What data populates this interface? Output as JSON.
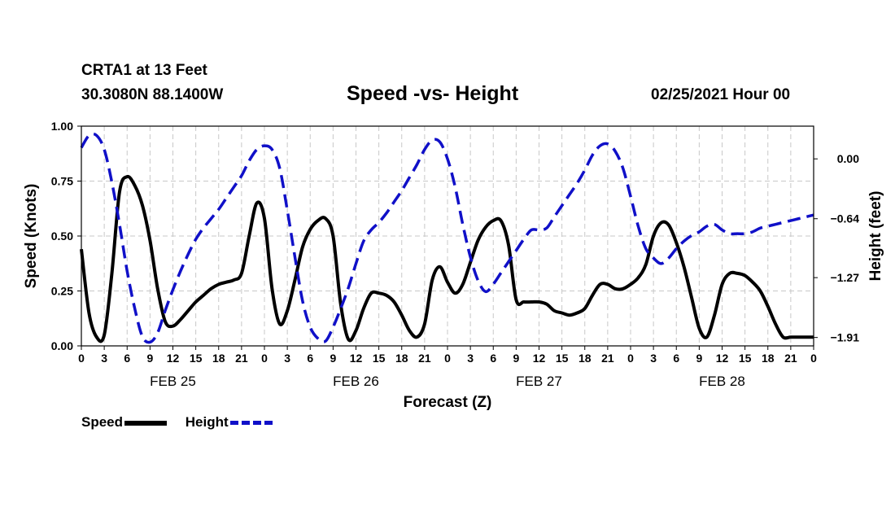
{
  "header": {
    "station": "CRTA1 at 13 Feet",
    "coordinates": "30.3080N 88.1400W",
    "title": "Speed -vs- Height",
    "datetime": "02/25/2021 Hour 00"
  },
  "chart_data": {
    "type": "line",
    "title": "Speed -vs- Height",
    "xlabel": "Forecast (Z)",
    "ylabel": "Speed (Knots)",
    "y2label": "Height (feet)",
    "xlim": [
      0,
      96
    ],
    "ylim": [
      0,
      1.0
    ],
    "y2lim": [
      -2.0,
      0.35
    ],
    "grid": true,
    "x_ticks": [
      0,
      3,
      6,
      9,
      12,
      15,
      18,
      21,
      24,
      27,
      30,
      33,
      36,
      39,
      42,
      45,
      48,
      51,
      54,
      57,
      60,
      63,
      66,
      69,
      72,
      75,
      78,
      81,
      84,
      87,
      90,
      93,
      96
    ],
    "x_tick_labels": [
      "0",
      "3",
      "6",
      "9",
      "12",
      "15",
      "18",
      "21",
      "0",
      "3",
      "6",
      "9",
      "12",
      "15",
      "18",
      "21",
      "0",
      "3",
      "6",
      "9",
      "12",
      "15",
      "18",
      "21",
      "0",
      "3",
      "6",
      "9",
      "12",
      "15",
      "18",
      "21",
      "0"
    ],
    "date_labels": [
      {
        "x": 12,
        "label": "FEB 25"
      },
      {
        "x": 36,
        "label": "FEB 26"
      },
      {
        "x": 60,
        "label": "FEB 27"
      },
      {
        "x": 84,
        "label": "FEB 28"
      }
    ],
    "y_ticks": [
      0,
      0.25,
      0.5,
      0.75,
      1.0
    ],
    "y_tick_labels": [
      "0.00",
      "0.25",
      "0.50",
      "0.75",
      "1.00"
    ],
    "y2_ticks": [
      0.0,
      -0.64,
      -1.27,
      -1.91
    ],
    "y2_tick_labels": [
      "0.00",
      "−0.64",
      "−1.27",
      "−1.91"
    ],
    "legend": {
      "placement": "bottom-left",
      "speed_label": "Speed",
      "height_label": "Height"
    },
    "series": [
      {
        "name": "Speed",
        "axis": "left",
        "color": "#000000",
        "style": "solid",
        "x": [
          0,
          1,
          2,
          3,
          4,
          5,
          6,
          7,
          8,
          9,
          10,
          11,
          12,
          13,
          14,
          15,
          16,
          17,
          18,
          19,
          20,
          21,
          22,
          23,
          24,
          25,
          26,
          27,
          28,
          29,
          30,
          31,
          32,
          33,
          34,
          35,
          36,
          37,
          38,
          39,
          40,
          41,
          42,
          43,
          44,
          45,
          46,
          47,
          48,
          49,
          50,
          51,
          52,
          53,
          54,
          55,
          56,
          57,
          58,
          59,
          60,
          61,
          62,
          63,
          64,
          65,
          66,
          67,
          68,
          69,
          70,
          71,
          72,
          73,
          74,
          75,
          76,
          77,
          78,
          79,
          80,
          81,
          82,
          83,
          84,
          85,
          86,
          87,
          88,
          89,
          90,
          91,
          92,
          93,
          94,
          95,
          96
        ],
        "values": [
          0.44,
          0.15,
          0.04,
          0.05,
          0.33,
          0.7,
          0.77,
          0.73,
          0.64,
          0.48,
          0.26,
          0.11,
          0.09,
          0.12,
          0.16,
          0.2,
          0.23,
          0.26,
          0.28,
          0.29,
          0.3,
          0.33,
          0.5,
          0.65,
          0.58,
          0.26,
          0.1,
          0.16,
          0.3,
          0.45,
          0.53,
          0.57,
          0.58,
          0.5,
          0.19,
          0.03,
          0.07,
          0.17,
          0.24,
          0.24,
          0.23,
          0.2,
          0.14,
          0.07,
          0.04,
          0.1,
          0.3,
          0.36,
          0.29,
          0.24,
          0.28,
          0.38,
          0.48,
          0.54,
          0.57,
          0.57,
          0.46,
          0.21,
          0.2,
          0.2,
          0.2,
          0.19,
          0.16,
          0.15,
          0.14,
          0.15,
          0.17,
          0.23,
          0.28,
          0.28,
          0.26,
          0.26,
          0.28,
          0.31,
          0.37,
          0.5,
          0.56,
          0.55,
          0.47,
          0.36,
          0.22,
          0.08,
          0.04,
          0.14,
          0.28,
          0.33,
          0.33,
          0.32,
          0.29,
          0.25,
          0.18,
          0.1,
          0.04,
          0.04,
          0.04,
          0.04,
          0.04
        ]
      },
      {
        "name": "Height",
        "axis": "right",
        "color": "#1010c8",
        "style": "dashed",
        "x": [
          0,
          1,
          2,
          3,
          4,
          5,
          6,
          7,
          8,
          9,
          10,
          11,
          12,
          13,
          14,
          15,
          16,
          17,
          18,
          19,
          20,
          21,
          22,
          23,
          24,
          25,
          26,
          27,
          28,
          29,
          30,
          31,
          32,
          33,
          34,
          35,
          36,
          37,
          38,
          39,
          40,
          41,
          42,
          43,
          44,
          45,
          46,
          47,
          48,
          49,
          50,
          51,
          52,
          53,
          54,
          55,
          56,
          57,
          58,
          59,
          60,
          61,
          62,
          63,
          64,
          65,
          66,
          67,
          68,
          69,
          70,
          71,
          72,
          73,
          74,
          75,
          76,
          77,
          78,
          79,
          80,
          81,
          82,
          83,
          84,
          85,
          86,
          87,
          88,
          89,
          90,
          91,
          92,
          93,
          94,
          95,
          96
        ],
        "values": [
          0.12,
          0.25,
          0.25,
          0.1,
          -0.25,
          -0.7,
          -1.2,
          -1.6,
          -1.9,
          -1.96,
          -1.86,
          -1.62,
          -1.4,
          -1.2,
          -1.02,
          -0.86,
          -0.74,
          -0.64,
          -0.54,
          -0.42,
          -0.3,
          -0.18,
          -0.02,
          0.1,
          0.14,
          0.1,
          -0.1,
          -0.55,
          -1.05,
          -1.52,
          -1.8,
          -1.92,
          -1.95,
          -1.8,
          -1.6,
          -1.38,
          -1.12,
          -0.88,
          -0.76,
          -0.68,
          -0.58,
          -0.46,
          -0.34,
          -0.2,
          -0.06,
          0.1,
          0.2,
          0.18,
          0.0,
          -0.3,
          -0.7,
          -1.05,
          -1.3,
          -1.42,
          -1.34,
          -1.22,
          -1.1,
          -0.98,
          -0.86,
          -0.76,
          -0.76,
          -0.74,
          -0.62,
          -0.5,
          -0.38,
          -0.26,
          -0.12,
          0.04,
          0.14,
          0.16,
          0.08,
          -0.1,
          -0.4,
          -0.72,
          -0.96,
          -1.06,
          -1.12,
          -1.06,
          -0.96,
          -0.88,
          -0.82,
          -0.78,
          -0.72,
          -0.7,
          -0.76,
          -0.8,
          -0.8,
          -0.8,
          -0.78,
          -0.74,
          -0.72,
          -0.7,
          -0.68,
          -0.66,
          -0.64,
          -0.62,
          -0.6
        ]
      }
    ]
  }
}
